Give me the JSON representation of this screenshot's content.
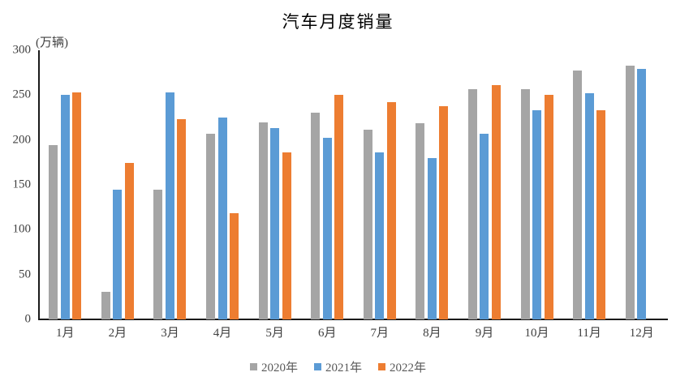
{
  "chart_data": {
    "type": "bar",
    "title": "汽车月度销量",
    "unit_label": "(万辆)",
    "categories": [
      "1月",
      "2月",
      "3月",
      "4月",
      "5月",
      "6月",
      "7月",
      "8月",
      "9月",
      "10月",
      "11月",
      "12月"
    ],
    "series": [
      {
        "name": "2020年",
        "color": "#A5A5A5",
        "values": [
          194,
          31,
          145,
          207,
          220,
          230,
          211,
          219,
          257,
          257,
          277,
          283
        ]
      },
      {
        "name": "2021年",
        "color": "#5B9BD5",
        "values": [
          250,
          145,
          253,
          225,
          213,
          202,
          186,
          180,
          207,
          233,
          252,
          279
        ]
      },
      {
        "name": "2022年",
        "color": "#ED7D31",
        "values": [
          253,
          174,
          223,
          118,
          186,
          250,
          242,
          238,
          261,
          250,
          233,
          null
        ]
      }
    ],
    "y_axis": {
      "min": 0,
      "max": 300,
      "step": 50,
      "tick_labels": [
        "0",
        "50",
        "100",
        "150",
        "200",
        "250",
        "300"
      ]
    },
    "xlabel": "",
    "ylabel": "(万辆)",
    "grid": false,
    "legend_position": "bottom"
  }
}
